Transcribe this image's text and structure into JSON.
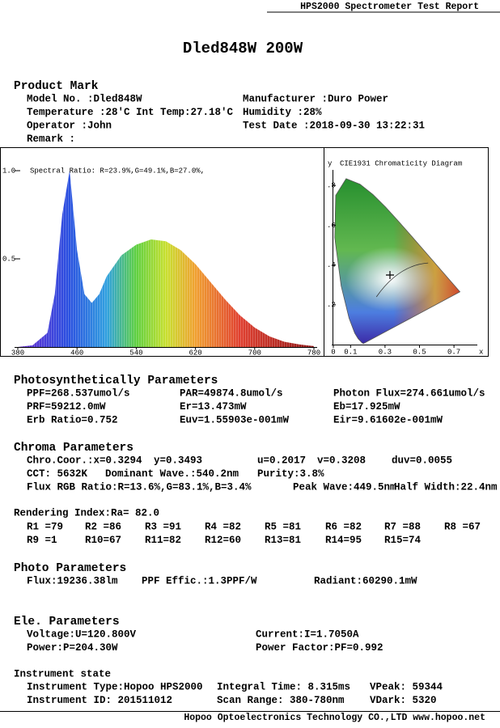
{
  "header": {
    "report_title": "HPS2000 Spectrometer Test Report",
    "title": "Dled848W 200W"
  },
  "sections": [
    {
      "heading": "Product Mark",
      "rows": [
        [
          "Model No. :Dled848W",
          "Manufacturer :Duro Power"
        ],
        [
          "Temperature :28'C Int Temp:27.18'C",
          "Humidity :28%"
        ],
        [
          "Operator :John",
          "Test Date :2018-09-30 13:22:31"
        ],
        [
          "Remark :"
        ]
      ]
    },
    {
      "heading": "Photosynthetically Parameters",
      "rows": [
        [
          "PPF=268.537umol/s",
          "PAR=49874.8umol/s",
          "Photon Flux=274.661umol/s"
        ],
        [
          "PRF=59212.0mW",
          "Er=13.473mW",
          "Eb=17.925mW"
        ],
        [
          "Erb Ratio=0.752",
          "Euv=1.55903e-001mW",
          "Eir=9.61602e-001mW"
        ]
      ]
    },
    {
      "heading": "Chroma Parameters",
      "rows": [
        [
          "Chro.Coor.:x=0.3294",
          "y=0.3493",
          "u=0.2017",
          "v=0.3208",
          "duv=0.0055"
        ],
        [
          "CCT: 5632K",
          "Dominant Wave.:540.2nm",
          "Purity:3.8%"
        ],
        [
          "Flux RGB Ratio:R=13.6%,G=83.1%,B=3.4%",
          "Peak Wave:449.5nm",
          "Half Width:22.4nm"
        ]
      ]
    },
    {
      "heading": "Rendering Index:Ra= 82.0",
      "rows": [
        [
          "R1 =79",
          "R2 =86",
          "R3 =91",
          "R4 =82",
          "R5 =81",
          "R6 =82",
          "R7 =88",
          "R8 =67"
        ],
        [
          "R9 =1",
          "R10=67",
          "R11=82",
          "R12=60",
          "R13=81",
          "R14=95",
          "R15=74"
        ]
      ]
    },
    {
      "heading": "Photo Parameters",
      "rows": [
        [
          "Flux:19236.38lm",
          "PPF Effic.:1.3PPF/W",
          "Radiant:60290.1mW"
        ]
      ]
    },
    {
      "heading": "Ele. Parameters",
      "rows": [
        [
          "Voltage:U=120.800V",
          "Current:I=1.7050A"
        ],
        [
          "Power:P=204.30W",
          "Power Factor:PF=0.992"
        ]
      ]
    },
    {
      "heading": "Instrument state",
      "rows": [
        [
          "Instrument Type:Hopoo HPS2000",
          "Integral Time: 8.315ms",
          "VPeak: 59344"
        ],
        [
          "Instrument ID: 201511012",
          "Scan Range: 380-780nm",
          "VDark: 5320"
        ]
      ]
    }
  ],
  "chart_data": [
    {
      "type": "area",
      "annotation": "Spectral Ratio:  R=23.9%,G=49.1%,B=27.0%,",
      "x": [
        380,
        400,
        420,
        430,
        440,
        450,
        460,
        470,
        480,
        490,
        500,
        520,
        540,
        560,
        580,
        600,
        620,
        640,
        660,
        680,
        700,
        720,
        740,
        760,
        780
      ],
      "values": [
        0,
        0.01,
        0.08,
        0.3,
        0.75,
        1.0,
        0.55,
        0.3,
        0.25,
        0.3,
        0.4,
        0.52,
        0.58,
        0.61,
        0.6,
        0.55,
        0.47,
        0.37,
        0.27,
        0.18,
        0.11,
        0.06,
        0.03,
        0.015,
        0.005
      ],
      "xlim": [
        380,
        780
      ],
      "ylim": [
        0,
        1
      ],
      "xticks": [
        380,
        460,
        540,
        620,
        700,
        780
      ],
      "yticks": [
        {
          "value": 1,
          "label": "1.0"
        },
        {
          "value": 0.5,
          "label": "0.5"
        }
      ]
    },
    {
      "type": "chromaticity",
      "title": "CIE1931 Chromaticity Diagram",
      "x_label": "x",
      "y_label": "y",
      "xlim": [
        0,
        0.8
      ],
      "ylim": [
        0,
        0.9
      ],
      "xticks": [
        0,
        {
          "value": 0.1,
          "label": "0.1"
        },
        {
          "value": 0.3,
          "label": "0.3"
        },
        {
          "value": 0.5,
          "label": "0.5"
        },
        {
          "value": 0.7,
          "label": "0.7"
        }
      ],
      "yticks": [
        {
          "value": 0.8,
          "label": ".8"
        },
        {
          "value": 0.6,
          "label": ".6"
        },
        {
          "value": 0.4,
          "label": ".4"
        },
        {
          "value": 0.2,
          "label": ".2"
        }
      ]
    }
  ],
  "footer": "Hopoo Optoelectronics Technology CO.,LTD  www.hopoo.net"
}
